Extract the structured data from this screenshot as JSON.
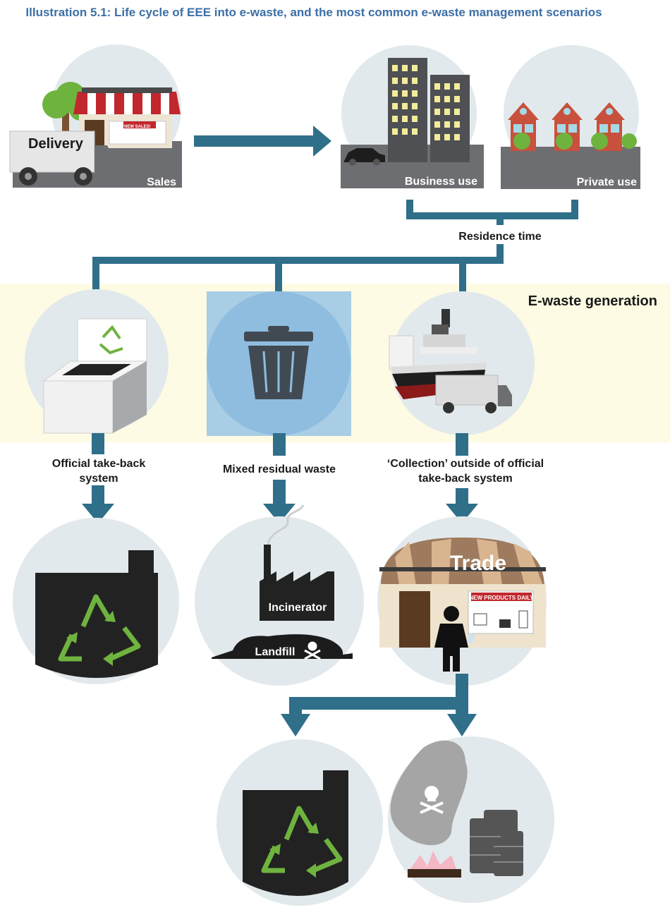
{
  "title": "Illustration 5.1: Life cycle of EEE into e-waste, and the most common e-waste management scenarios",
  "top": {
    "delivery": "Delivery",
    "new_sales_sign": "NEW SALES!",
    "sales": "Sales",
    "business_use": "Business use",
    "private_use": "Private use",
    "residence_time": "Residence time"
  },
  "generation": {
    "heading": "E-waste generation",
    "official": "Official take-back system",
    "mixed": "Mixed residual waste",
    "collection": "‘Collection’ outside of official take-back system"
  },
  "outcomes": {
    "incinerator": "Incinerator",
    "landfill": "Landfill",
    "trade": "Trade",
    "trade_sign": "NEW PRODUCTS DAILY"
  },
  "colors": {
    "arrow": "#2f6f8a",
    "circle": "#e2e9ec",
    "band": "#fdfbe3",
    "recycle_green": "#6fb33f",
    "title_blue": "#3b6fa6",
    "panel_grey": "#6d6e71"
  }
}
